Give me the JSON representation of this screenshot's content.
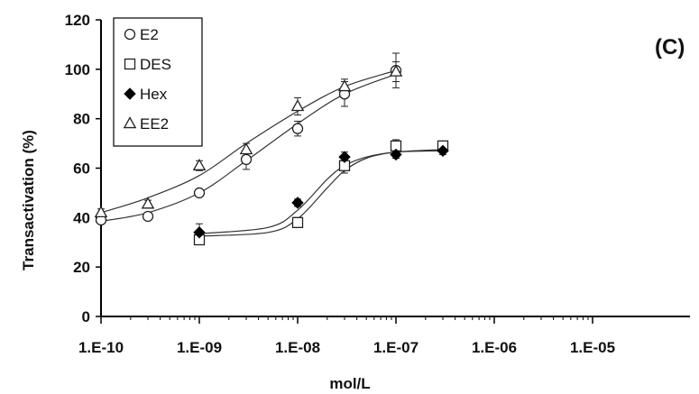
{
  "panel_label": "(C)",
  "chart_data": {
    "type": "scatter",
    "title": "",
    "xlabel": "mol/L",
    "ylabel": "Transactivation (%)",
    "x_scale": "log",
    "xlim": [
      1e-10,
      1e-05
    ],
    "ylim": [
      0,
      120
    ],
    "x_tick_labels": [
      "1.E-10",
      "1.E-09",
      "1.E-08",
      "1.E-07",
      "1.E-06",
      "1.E-05"
    ],
    "y_tick_labels": [
      "0",
      "20",
      "40",
      "60",
      "80",
      "100",
      "120"
    ],
    "grid": false,
    "legend_position": "top-left",
    "series": [
      {
        "name": "E2",
        "marker": "circle-open",
        "x": [
          1e-10,
          3e-10,
          1e-09,
          3e-09,
          1e-08,
          3e-08,
          1e-07
        ],
        "y": [
          39,
          40.5,
          50,
          63.5,
          76,
          90,
          99.5
        ],
        "error": [
          1.5,
          1,
          1.5,
          4,
          3,
          5,
          7
        ],
        "fit": [
          [
            1e-10,
            38.5
          ],
          [
            3e-10,
            42
          ],
          [
            1e-09,
            50
          ],
          [
            3e-09,
            63
          ],
          [
            1e-08,
            78
          ],
          [
            3e-08,
            90
          ],
          [
            1e-07,
            98
          ]
        ]
      },
      {
        "name": "DES",
        "marker": "square-open",
        "x": [
          1e-09,
          1e-08,
          3e-08,
          1e-07,
          3e-07
        ],
        "y": [
          31,
          38,
          61,
          69,
          69
        ],
        "error": [
          1.5,
          2,
          3,
          2.5,
          1.5
        ],
        "fit": [
          [
            1e-09,
            32.5
          ],
          [
            5e-09,
            34
          ],
          [
            1e-08,
            39.5
          ],
          [
            2e-08,
            52
          ],
          [
            3e-08,
            59
          ],
          [
            5e-08,
            64
          ],
          [
            1e-07,
            66.5
          ],
          [
            3e-07,
            67.5
          ]
        ]
      },
      {
        "name": "Hex",
        "marker": "diamond-filled",
        "x": [
          1e-09,
          1e-08,
          3e-08,
          1e-07,
          3e-07
        ],
        "y": [
          34,
          46,
          64.5,
          65.5,
          67
        ],
        "error": [
          3.5,
          1.5,
          2,
          1.5,
          1.5
        ],
        "fit": [
          [
            1e-09,
            33.5
          ],
          [
            5e-09,
            36
          ],
          [
            1e-08,
            43
          ],
          [
            2e-08,
            55.5
          ],
          [
            3e-08,
            61
          ],
          [
            5e-08,
            64.5
          ],
          [
            1e-07,
            66.5
          ],
          [
            3e-07,
            67
          ]
        ]
      },
      {
        "name": "EE2",
        "marker": "triangle-open",
        "x": [
          1e-10,
          3e-10,
          1e-09,
          3e-09,
          1e-08,
          3e-08,
          1e-07
        ],
        "y": [
          42,
          45.5,
          61,
          67.5,
          85,
          93,
          99
        ],
        "error": [
          1.5,
          1.5,
          2,
          2.5,
          3.5,
          3,
          4
        ],
        "fit": [
          [
            1e-10,
            42
          ],
          [
            3e-10,
            48
          ],
          [
            1e-09,
            57
          ],
          [
            3e-09,
            70
          ],
          [
            1e-08,
            83
          ],
          [
            3e-08,
            93
          ],
          [
            1e-07,
            99.5
          ]
        ]
      }
    ]
  }
}
